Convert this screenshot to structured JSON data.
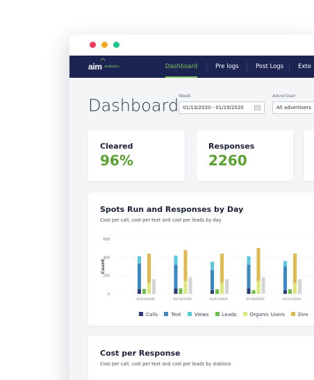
{
  "window": {
    "controls": [
      "close",
      "minimize",
      "maximize"
    ],
    "control_colors": [
      "#ef3b57",
      "#f5a623",
      "#1ac88a"
    ]
  },
  "brand": {
    "logo_main": "aim",
    "logo_sub": "analytics",
    "accent": "#7ec25b",
    "navy": "#1c2451"
  },
  "nav": {
    "items": [
      {
        "label": "Dashboard",
        "active": true
      },
      {
        "label": "Pre logs"
      },
      {
        "label": "Post Logs"
      },
      {
        "label": "Exte"
      }
    ]
  },
  "header": {
    "title": "Dashboard",
    "week_label": "Week",
    "week_value": "01/13/2020 - 01/19/2020",
    "advertiser_label": "Advertiser",
    "advertiser_value": "All advertisers"
  },
  "stats": [
    {
      "title": "Cleared",
      "value": "96%"
    },
    {
      "title": "Responses",
      "value": "2260"
    }
  ],
  "chart1": {
    "title": "Spots Run and Responses by Day",
    "subtitle": "Cost per call, cost per text and cost per leads by day"
  },
  "chart2": {
    "title": "Cost per Response",
    "subtitle": "Cost per call, cost per text and cost per leads by stations"
  },
  "chart_data": {
    "type": "bar",
    "title": "Spots Run and Responses by Day",
    "subtitle": "Cost per call, cost per text and cost per leads by day",
    "xlabel": "",
    "ylabel": "Count",
    "ylim": [
      0,
      600
    ],
    "yticks": [
      0,
      200,
      400,
      600
    ],
    "grid": true,
    "legend_position": "bottom",
    "categories": [
      "01/13/2020",
      "01/14/2020",
      "01/15/2020",
      "01/16/2020",
      "01/17/2020"
    ],
    "series": [
      {
        "name": "Calls",
        "color": "#2e3a78",
        "values": [
          50,
          60,
          40,
          60,
          40
        ]
      },
      {
        "name": "Text",
        "color": "#3b87c2",
        "values": [
          280,
          260,
          220,
          260,
          260
        ]
      },
      {
        "name": "Views",
        "color": "#5bc8dd",
        "values": [
          80,
          100,
          90,
          90,
          60
        ]
      },
      {
        "name": "Leads",
        "color": "#6cbf4b",
        "values": [
          55,
          60,
          50,
          40,
          50
        ]
      },
      {
        "name": "Organic Users",
        "color": "#dbe77a",
        "values": [
          120,
          140,
          120,
          140,
          120
        ]
      },
      {
        "name": "Dire",
        "color": "#dfbb4f",
        "values": [
          320,
          340,
          320,
          360,
          320
        ]
      },
      {
        "name": "",
        "color": "#d4d4d4",
        "values": [
          160,
          180,
          160,
          180,
          160
        ]
      }
    ],
    "stacks": [
      [
        "Calls",
        "Text",
        "Views"
      ],
      [
        "Leads"
      ],
      [
        "Organic Users",
        "Dire"
      ],
      [
        ""
      ]
    ]
  }
}
